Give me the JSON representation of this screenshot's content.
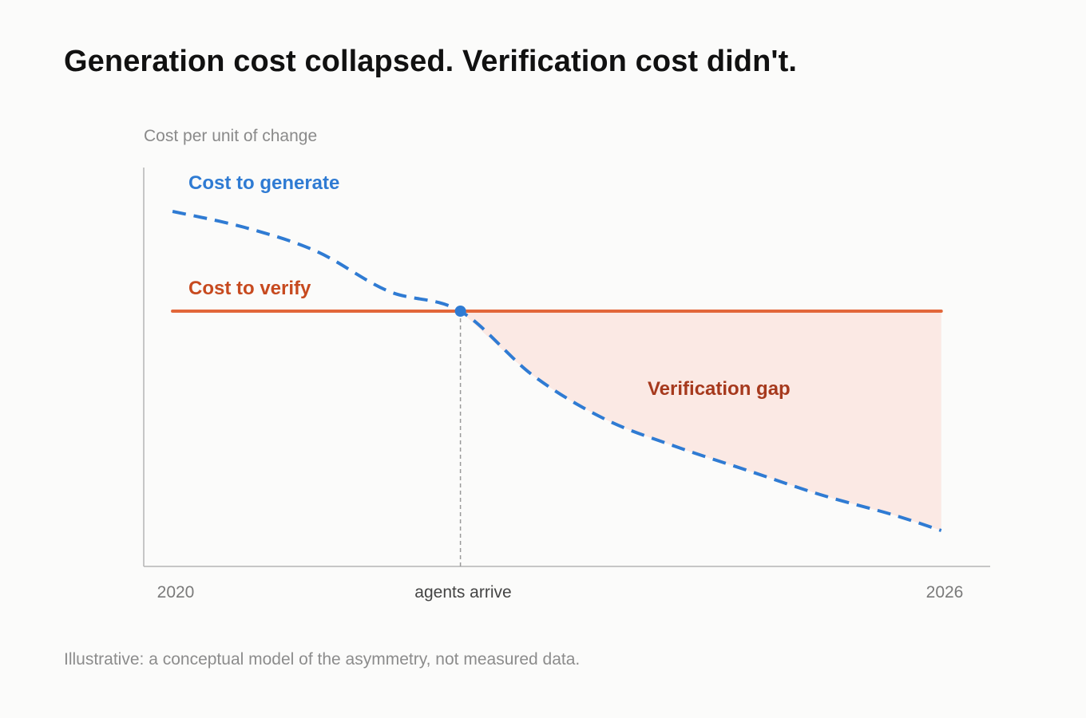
{
  "title": "Generation cost collapsed. Verification cost didn't.",
  "footnote": "Illustrative: a conceptual model of the asymmetry, not measured data.",
  "colors": {
    "generate": "#2f7bd3",
    "verify": "#e2673a",
    "gap_fill": "#fbe9e4",
    "gap_text": "#a6391d",
    "axis": "#b5b5b5",
    "marker_line": "#9a9a9a"
  },
  "chart_data": {
    "type": "line",
    "ylabel": "Cost per unit of change",
    "xlabel": "",
    "grid": false,
    "x_ticks": [
      {
        "x": 0,
        "label": "2020"
      },
      {
        "x": 1,
        "label": "agents arrive"
      },
      {
        "x": 2.67,
        "label": "2026"
      }
    ],
    "xlim": [
      -0.1,
      2.84
    ],
    "ylim": [
      0,
      1
    ],
    "series": [
      {
        "name": "Cost to generate",
        "style": "dashed",
        "color": "#2f7bd3",
        "x": [
          0,
          0.25,
          0.5,
          0.75,
          1.0,
          1.25,
          1.5,
          1.75,
          2.0,
          2.25,
          2.5,
          2.67
        ],
        "y": [
          0.89,
          0.85,
          0.79,
          0.69,
          0.64,
          0.48,
          0.37,
          0.3,
          0.24,
          0.18,
          0.13,
          0.09
        ]
      },
      {
        "name": "Cost to verify",
        "style": "solid",
        "color": "#e2673a",
        "x": [
          0,
          2.67
        ],
        "y": [
          0.64,
          0.64
        ]
      }
    ],
    "annotations": [
      {
        "text": "Verification gap",
        "type": "shaded-region",
        "x_from": 1,
        "x_to": 2.67,
        "between": [
          "Cost to verify",
          "Cost to generate"
        ]
      },
      {
        "text": "",
        "type": "crossover-point",
        "x": 1,
        "y": 0.64
      }
    ]
  }
}
